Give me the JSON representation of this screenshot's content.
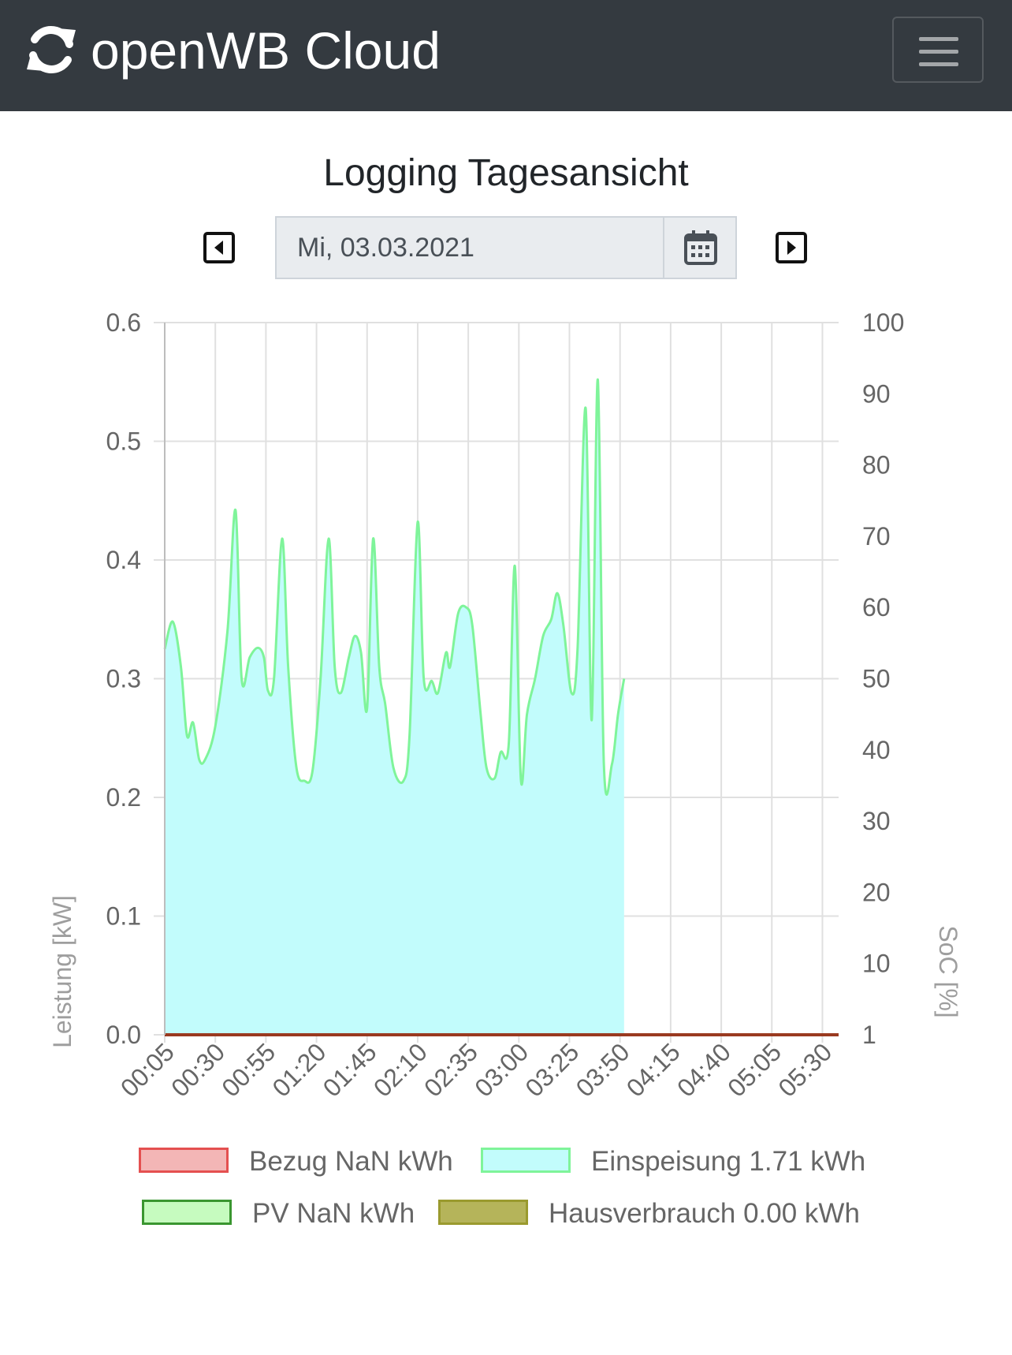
{
  "navbar": {
    "brand": "openWB Cloud",
    "brand_icon": "sync-icon",
    "menu_icon": "hamburger-icon",
    "background": "#343a40"
  },
  "page": {
    "title": "Logging Tagesansicht"
  },
  "date_picker": {
    "value": "Mi, 03.03.2021",
    "prev_icon": "caret-left-square-icon",
    "next_icon": "caret-right-square-icon",
    "calendar_icon": "calendar-icon"
  },
  "chart_data": {
    "type": "area",
    "title": "",
    "y_left": {
      "label": "Leistung [kW]",
      "min": 0.0,
      "max": 0.6,
      "ticks": [
        "0.0",
        "0.1",
        "0.2",
        "0.3",
        "0.4",
        "0.5",
        "0.6"
      ]
    },
    "y_right": {
      "label": "SoC [%]",
      "ticks": [
        "1",
        "10",
        "20",
        "30",
        "40",
        "50",
        "60",
        "70",
        "80",
        "90",
        "100"
      ]
    },
    "x_tick_labels": [
      "00:05",
      "00:30",
      "00:55",
      "01:20",
      "01:45",
      "02:10",
      "02:35",
      "03:00",
      "03:25",
      "03:50",
      "04:15",
      "04:40",
      "05:05",
      "05:30"
    ],
    "x_range_minutes": [
      5,
      338
    ],
    "grid": true,
    "legend_position": "bottom",
    "series": [
      {
        "name": "Bezug NaN kWh",
        "color": "#e45050",
        "fill": "#f3b6b6",
        "values": []
      },
      {
        "name": "Einspeisung 1.71 kWh",
        "color": "#7ff49a",
        "fill": "#c2fcfc",
        "points": [
          [
            5,
            0.325
          ],
          [
            9,
            0.348
          ],
          [
            13,
            0.31
          ],
          [
            16,
            0.252
          ],
          [
            19,
            0.263
          ],
          [
            22,
            0.232
          ],
          [
            25,
            0.232
          ],
          [
            30,
            0.26
          ],
          [
            36,
            0.34
          ],
          [
            40,
            0.442
          ],
          [
            43,
            0.3
          ],
          [
            47,
            0.318
          ],
          [
            51,
            0.326
          ],
          [
            54,
            0.318
          ],
          [
            56,
            0.29
          ],
          [
            59,
            0.3
          ],
          [
            63,
            0.418
          ],
          [
            66,
            0.31
          ],
          [
            70,
            0.226
          ],
          [
            74,
            0.214
          ],
          [
            78,
            0.222
          ],
          [
            82,
            0.3
          ],
          [
            86,
            0.418
          ],
          [
            89,
            0.31
          ],
          [
            92,
            0.288
          ],
          [
            96,
            0.318
          ],
          [
            99,
            0.336
          ],
          [
            102,
            0.322
          ],
          [
            105,
            0.275
          ],
          [
            108,
            0.418
          ],
          [
            111,
            0.31
          ],
          [
            114,
            0.278
          ],
          [
            118,
            0.225
          ],
          [
            123,
            0.214
          ],
          [
            126,
            0.253
          ],
          [
            130,
            0.432
          ],
          [
            133,
            0.3
          ],
          [
            137,
            0.298
          ],
          [
            140,
            0.288
          ],
          [
            144,
            0.322
          ],
          [
            146,
            0.31
          ],
          [
            150,
            0.355
          ],
          [
            154,
            0.36
          ],
          [
            157,
            0.345
          ],
          [
            161,
            0.272
          ],
          [
            164,
            0.225
          ],
          [
            168,
            0.216
          ],
          [
            171,
            0.238
          ],
          [
            175,
            0.245
          ],
          [
            178,
            0.395
          ],
          [
            181,
            0.215
          ],
          [
            184,
            0.27
          ],
          [
            188,
            0.3
          ],
          [
            192,
            0.336
          ],
          [
            196,
            0.35
          ],
          [
            199,
            0.372
          ],
          [
            202,
            0.345
          ],
          [
            206,
            0.288
          ],
          [
            209,
            0.325
          ],
          [
            213,
            0.528
          ],
          [
            216,
            0.265
          ],
          [
            219,
            0.552
          ],
          [
            222,
            0.228
          ],
          [
            226,
            0.228
          ],
          [
            229,
            0.27
          ],
          [
            232,
            0.3
          ]
        ]
      },
      {
        "name": "PV NaN kWh",
        "color": "#3a9630",
        "fill": "#c6fbbf",
        "values": []
      },
      {
        "name": "Hausverbrauch 0.00 kWh",
        "color": "#9a9a2e",
        "fill": "#b5b45a",
        "values": [
          0
        ]
      }
    ]
  }
}
